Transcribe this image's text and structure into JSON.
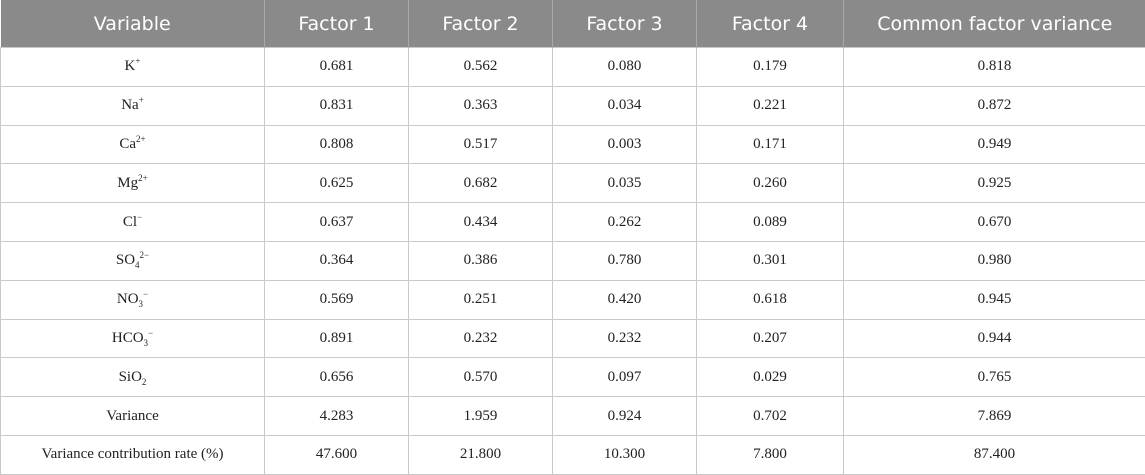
{
  "table": {
    "headers": [
      "Variable",
      "Factor 1",
      "Factor 2",
      "Factor 3",
      "Factor 4",
      "Common factor variance"
    ],
    "rows": [
      {
        "label": {
          "base": "K",
          "sup": "+"
        },
        "values": [
          "0.681",
          "0.562",
          "0.080",
          "0.179",
          "0.818"
        ]
      },
      {
        "label": {
          "base": "Na",
          "sup": "+"
        },
        "values": [
          "0.831",
          "0.363",
          "0.034",
          "0.221",
          "0.872"
        ]
      },
      {
        "label": {
          "base": "Ca",
          "sup": "2+"
        },
        "values": [
          "0.808",
          "0.517",
          "0.003",
          "0.171",
          "0.949"
        ]
      },
      {
        "label": {
          "base": "Mg",
          "sup": "2+"
        },
        "values": [
          "0.625",
          "0.682",
          "0.035",
          "0.260",
          "0.925"
        ]
      },
      {
        "label": {
          "base": "Cl",
          "sup": "−"
        },
        "values": [
          "0.637",
          "0.434",
          "0.262",
          "0.089",
          "0.670"
        ]
      },
      {
        "label": {
          "base": "SO",
          "sub": "4",
          "sup": "2−"
        },
        "values": [
          "0.364",
          "0.386",
          "0.780",
          "0.301",
          "0.980"
        ]
      },
      {
        "label": {
          "base": "NO",
          "sub": "3",
          "sup": "−"
        },
        "values": [
          "0.569",
          "0.251",
          "0.420",
          "0.618",
          "0.945"
        ]
      },
      {
        "label": {
          "base": "HCO",
          "sub": "3",
          "sup": "−"
        },
        "values": [
          "0.891",
          "0.232",
          "0.232",
          "0.207",
          "0.944"
        ]
      },
      {
        "label": {
          "base": "SiO",
          "sub": "2"
        },
        "values": [
          "0.656",
          "0.570",
          "0.097",
          "0.029",
          "0.765"
        ]
      },
      {
        "label": {
          "base": "Variance"
        },
        "values": [
          "4.283",
          "1.959",
          "0.924",
          "0.702",
          "7.869"
        ]
      },
      {
        "label": {
          "base": "Variance contribution rate (%)"
        },
        "values": [
          "47.600",
          "21.800",
          "10.300",
          "7.800",
          "87.400"
        ]
      }
    ]
  }
}
